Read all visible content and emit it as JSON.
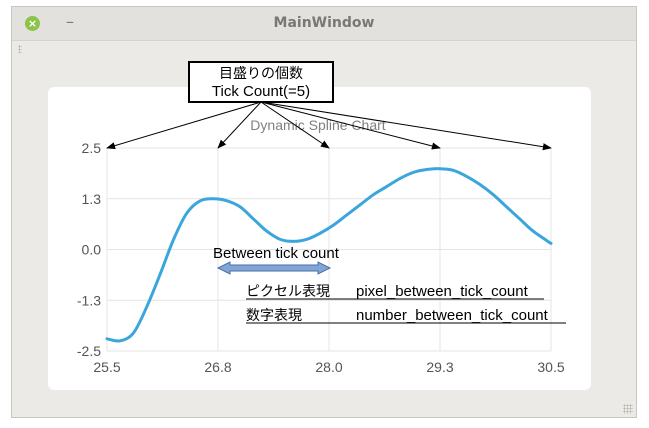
{
  "window": {
    "title": "MainWindow",
    "close_glyph": "×",
    "minimize_glyph": "–"
  },
  "colors": {
    "line": "#3aa6dc",
    "arrow_fill": "#7fa6d6",
    "arrow_stroke": "#4a6fa5",
    "grid": "#e4e4e4"
  },
  "annotations": {
    "tick_box_line1": "目盛りの個数",
    "tick_box_line2": "Tick Count(=5)",
    "between_label": "Between tick count",
    "pixel_label": "ピクセル表現",
    "pixel_name": "pixel_between_tick_count",
    "number_label": "数字表現",
    "number_name": "number_between_tick_count"
  },
  "chart_data": {
    "type": "line",
    "title": "Dynamic Spline Chart",
    "xlim": [
      25.5,
      30.5
    ],
    "ylim": [
      -2.5,
      2.5
    ],
    "x_ticks": [
      "25.5",
      "26.8",
      "28.0",
      "29.3",
      "30.5"
    ],
    "y_ticks": [
      "2.5",
      "1.3",
      "0.0",
      "-1.3",
      "-2.5"
    ],
    "x_tick_values": [
      25.5,
      26.75,
      28.0,
      29.25,
      30.5
    ],
    "y_tick_values": [
      2.5,
      1.25,
      0.0,
      -1.25,
      -2.5
    ],
    "grid": true,
    "series": [
      {
        "x": [
          25.5,
          25.65,
          25.8,
          25.95,
          26.1,
          26.25,
          26.4,
          26.55,
          26.7,
          26.85,
          27.0,
          27.15,
          27.3,
          27.45,
          27.6,
          27.75,
          27.9,
          28.05,
          28.2,
          28.35,
          28.5,
          28.65,
          28.8,
          28.95,
          29.1,
          29.25,
          29.4,
          29.55,
          29.7,
          29.85,
          30.0,
          30.15,
          30.3,
          30.5
        ],
        "y": [
          -2.2,
          -2.25,
          -2.05,
          -1.4,
          -0.6,
          0.25,
          0.9,
          1.2,
          1.25,
          1.2,
          1.05,
          0.75,
          0.45,
          0.25,
          0.2,
          0.25,
          0.4,
          0.6,
          0.85,
          1.1,
          1.35,
          1.55,
          1.75,
          1.9,
          1.97,
          1.99,
          1.95,
          1.8,
          1.6,
          1.35,
          1.05,
          0.75,
          0.45,
          0.15
        ]
      }
    ]
  }
}
